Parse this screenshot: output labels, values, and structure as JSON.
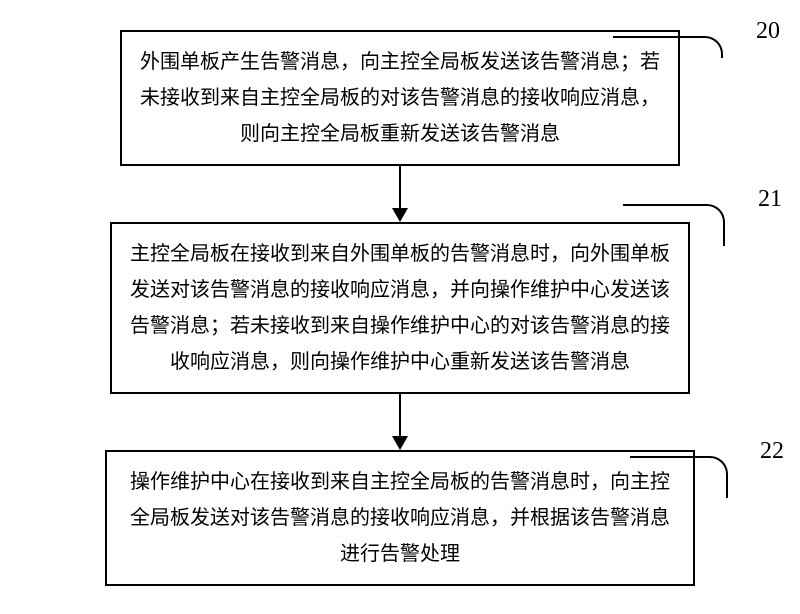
{
  "flowchart": {
    "type": "flowchart",
    "nodes": [
      {
        "id": "node-20",
        "label": "20",
        "text": "外围单板产生告警消息，向主控全局板发送该告警消息；若未接收到来自主控全局板的对该告警消息的接收响应消息，则向主控全局板重新发送该告警消息"
      },
      {
        "id": "node-21",
        "label": "21",
        "text": "主控全局板在接收到来自外围单板的告警消息时，向外围单板发送对该告警消息的接收响应消息，并向操作维护中心发送该告警消息；若未接收到来自操作维护中心的对该告警消息的接收响应消息，则向操作维护中心重新发送该告警消息"
      },
      {
        "id": "node-22",
        "label": "22",
        "text": "操作维护中心在接收到来自主控全局板的告警消息时，向主控全局板发送对该告警消息的接收响应消息，并根据该告警消息进行告警处理"
      }
    ],
    "styling": {
      "node_border_color": "#000000",
      "node_border_width": 2,
      "node_background": "#ffffff",
      "node_font_size": 20,
      "node_font_family": "SimSun",
      "label_font_size": 24,
      "label_font_family": "Times New Roman",
      "arrow_color": "#000000",
      "arrow_width": 2,
      "background_color": "#ffffff",
      "line_height": 1.8
    },
    "edges": [
      {
        "from": "node-20",
        "to": "node-21"
      },
      {
        "from": "node-21",
        "to": "node-22"
      }
    ]
  }
}
